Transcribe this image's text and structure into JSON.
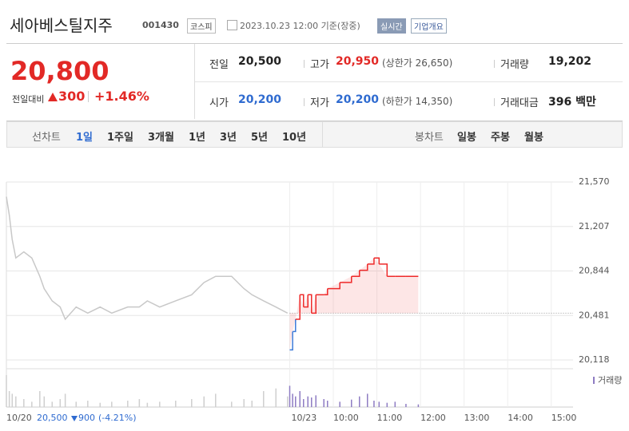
{
  "header": {
    "name": "세아베스틸지주",
    "code": "001430",
    "market": "코스피",
    "timestamp": "2023.10.23 12:00 기준(장중)",
    "realtime": "실시간",
    "overview": "기업개요"
  },
  "quote": {
    "price": "20,800",
    "change_label": "전일대비",
    "change": "300",
    "change_rate": "+1.46%"
  },
  "stats": [
    [
      {
        "label": "전일",
        "value": "20,500"
      },
      {
        "label": "고가",
        "value": "20,950",
        "note": "(상한가 26,650)"
      },
      {
        "label": "거래량",
        "value": "19,202"
      }
    ],
    [
      {
        "label": "시가",
        "value": "20,200"
      },
      {
        "label": "저가",
        "value": "20,200",
        "note": "(하한가 14,350)"
      },
      {
        "label": "거래대금",
        "value": "396 백만"
      }
    ]
  ],
  "tabs": {
    "line_label": "선차트",
    "periods": [
      "1일",
      "1주일",
      "3개월",
      "1년",
      "3년",
      "5년",
      "10년"
    ],
    "candle_label": "봉차트",
    "candle_periods": [
      "일봉",
      "주봉",
      "월봉"
    ]
  },
  "footer": {
    "date": "10/20",
    "price": "20,500",
    "change": "900",
    "rate": "(-4.21%)"
  },
  "chart_data": {
    "type": "line",
    "legend": "거래량",
    "baseline": 20500,
    "ylim": [
      20118,
      21570
    ],
    "yticks": [
      {
        "value": 20118,
        "label": "20,118"
      },
      {
        "value": 20481,
        "label": "20,481"
      },
      {
        "value": 20844,
        "label": "20,844"
      },
      {
        "value": 21207,
        "label": "21,207"
      },
      {
        "value": 21570,
        "label": "21,570"
      }
    ],
    "xlim": [
      0,
      780
    ],
    "xticks": [
      {
        "value": 0,
        "label": "10/20"
      },
      {
        "value": 390,
        "label": "10/23"
      },
      {
        "value": 450,
        "label": "10:00"
      },
      {
        "value": 510,
        "label": "11:00"
      },
      {
        "value": 570,
        "label": "12:00"
      },
      {
        "value": 630,
        "label": "13:00"
      },
      {
        "value": 690,
        "label": "14:00"
      },
      {
        "value": 750,
        "label": "15:00"
      }
    ],
    "series": [
      {
        "color": "#c8c8c8",
        "x": [
          0,
          4,
          8,
          13,
          24,
          35,
          46,
          52,
          63,
          74,
          81,
          96,
          112,
          129,
          145,
          167,
          183,
          194,
          211,
          233,
          255,
          272,
          288,
          310,
          327,
          338,
          354,
          371,
          387
        ],
        "values": [
          21450,
          21300,
          21100,
          20950,
          21000,
          20950,
          20800,
          20700,
          20600,
          20550,
          20450,
          20550,
          20500,
          20550,
          20500,
          20550,
          20550,
          20600,
          20550,
          20600,
          20650,
          20750,
          20800,
          20800,
          20700,
          20650,
          20600,
          20550,
          20500
        ]
      },
      {
        "color": "#ee2a2a",
        "down_color": "#3d7bd9",
        "x": [
          390,
          394,
          398,
          404,
          409,
          415,
          420,
          426,
          437,
          442,
          459,
          475,
          486,
          497,
          506,
          513,
          524,
          535,
          550,
          567
        ],
        "values": [
          20200,
          20350,
          20450,
          20650,
          20550,
          20650,
          20500,
          20650,
          20650,
          20700,
          20750,
          20800,
          20850,
          20900,
          20950,
          20900,
          20800,
          20800,
          20800,
          20800
        ]
      }
    ],
    "volume": [
      {
        "color": "#cfcfcf",
        "x": [
          0,
          4,
          8,
          13,
          24,
          35,
          46,
          52,
          63,
          74,
          81,
          96,
          112,
          129,
          145,
          167,
          183,
          194,
          211,
          233,
          255,
          272,
          288,
          310,
          327,
          338,
          354,
          371,
          387
        ],
        "values": [
          60,
          30,
          25,
          20,
          15,
          10,
          30,
          20,
          10,
          15,
          25,
          10,
          12,
          8,
          10,
          12,
          15,
          8,
          10,
          12,
          15,
          20,
          25,
          10,
          15,
          12,
          30,
          35,
          20
        ]
      },
      {
        "color": "#8e7cc3",
        "x": [
          390,
          394,
          398,
          404,
          409,
          415,
          420,
          426,
          437,
          442,
          459,
          475,
          486,
          497,
          506,
          513,
          524,
          535,
          550,
          567
        ],
        "values": [
          40,
          25,
          20,
          30,
          15,
          20,
          18,
          22,
          15,
          12,
          10,
          14,
          20,
          25,
          12,
          10,
          8,
          10,
          6,
          5
        ]
      }
    ]
  }
}
